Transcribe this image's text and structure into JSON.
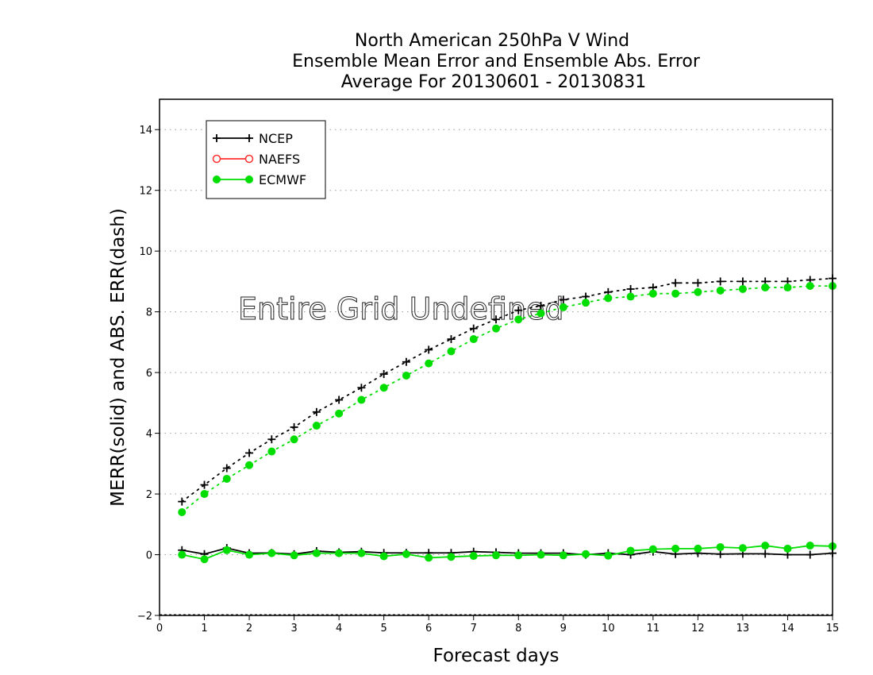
{
  "chart_data": {
    "type": "line",
    "title": [
      "North American 250hPa V Wind",
      "Ensemble Mean Error and Ensemble Abs. Error",
      "Average For 20130601 - 20130831"
    ],
    "xlabel": "Forecast days",
    "ylabel": "MERR(solid) and ABS. ERR(dash)",
    "xlim": [
      0,
      15
    ],
    "ylim": [
      -2,
      15
    ],
    "xticks": [
      0,
      1,
      2,
      3,
      4,
      5,
      6,
      7,
      8,
      9,
      10,
      11,
      12,
      13,
      14,
      15
    ],
    "yticks": [
      -2,
      0,
      2,
      4,
      6,
      8,
      10,
      12,
      14
    ],
    "grid": "horizontal dotted",
    "legend_position": "top-left",
    "annotation": "Entire Grid Undefined",
    "x": [
      0.5,
      1,
      1.5,
      2,
      2.5,
      3,
      3.5,
      4,
      4.5,
      5,
      5.5,
      6,
      6.5,
      7,
      7.5,
      8,
      8.5,
      9,
      9.5,
      10,
      10.5,
      11,
      11.5,
      12,
      12.5,
      13,
      13.5,
      14,
      14.5,
      15
    ],
    "series": [
      {
        "name": "NCEP",
        "color": "#000000",
        "marker": "plus",
        "merr": [
          0.15,
          0.02,
          0.22,
          0.05,
          0.06,
          0.02,
          0.12,
          0.08,
          0.1,
          0.06,
          0.06,
          0.06,
          0.06,
          0.1,
          0.08,
          0.05,
          0.05,
          0.05,
          0.0,
          0.05,
          0.0,
          0.1,
          0.02,
          0.05,
          0.02,
          0.03,
          0.03,
          0.0,
          0.0,
          0.05
        ],
        "abs_err": [
          1.75,
          2.3,
          2.85,
          3.35,
          3.8,
          4.2,
          4.7,
          5.1,
          5.5,
          5.95,
          6.35,
          6.75,
          7.1,
          7.45,
          7.75,
          8.05,
          8.2,
          8.4,
          8.5,
          8.65,
          8.75,
          8.8,
          8.95,
          8.95,
          9.0,
          9.0,
          9.0,
          9.0,
          9.05,
          9.1
        ]
      },
      {
        "name": "NAEFS",
        "color": "#ff3030",
        "marker": "open-circle",
        "merr": [],
        "abs_err": []
      },
      {
        "name": "ECMWF",
        "color": "#00dd00",
        "marker": "filled-circle",
        "merr": [
          0.0,
          -0.15,
          0.15,
          0.0,
          0.05,
          -0.02,
          0.05,
          0.05,
          0.05,
          -0.05,
          0.02,
          -0.1,
          -0.07,
          -0.04,
          -0.02,
          -0.02,
          0.0,
          -0.02,
          0.02,
          -0.03,
          0.13,
          0.18,
          0.2,
          0.2,
          0.25,
          0.22,
          0.3,
          0.2,
          0.3,
          0.28
        ],
        "abs_err": [
          1.4,
          2.0,
          2.5,
          2.95,
          3.4,
          3.8,
          4.25,
          4.65,
          5.1,
          5.5,
          5.9,
          6.3,
          6.7,
          7.1,
          7.45,
          7.75,
          7.95,
          8.15,
          8.3,
          8.45,
          8.5,
          8.6,
          8.6,
          8.65,
          8.7,
          8.75,
          8.8,
          8.8,
          8.85,
          8.85
        ]
      }
    ]
  }
}
